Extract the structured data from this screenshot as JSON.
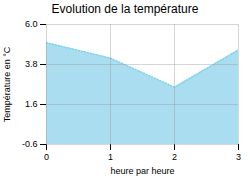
{
  "chart_data": {
    "type": "area",
    "title": "Evolution de la température",
    "xlabel": "heure par heure",
    "ylabel": "Température en °C",
    "x": [
      0,
      1,
      2,
      3
    ],
    "series": [
      {
        "type": "area",
        "color": "#aaddf0",
        "values": [
          5.0,
          4.15,
          2.55,
          4.6
        ]
      },
      {
        "type": "line",
        "color": "#7dd4e8",
        "line_style": "dotted",
        "values": [
          5.0,
          4.15,
          2.55,
          4.6
        ]
      }
    ],
    "xlim": [
      0,
      3
    ],
    "ylim": [
      -0.6,
      6.0
    ],
    "xticks": [
      0,
      1,
      2,
      3
    ],
    "yticks": [
      -0.6,
      1.6,
      3.8,
      {
        "value": 6.0,
        "label": "6.0"
      }
    ],
    "grid": true
  }
}
